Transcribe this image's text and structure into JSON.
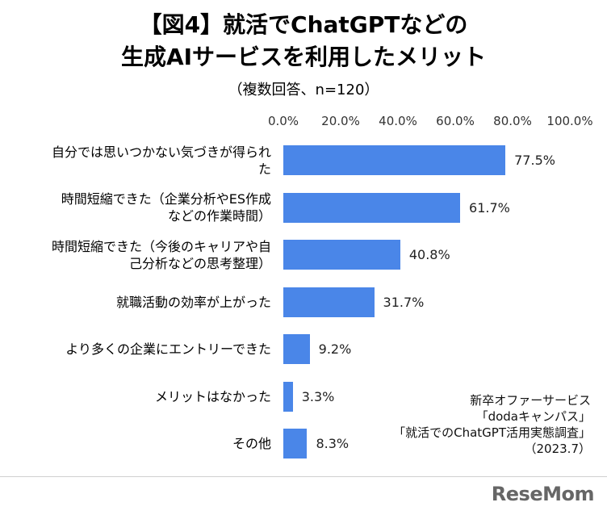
{
  "chart_data": {
    "type": "bar",
    "orientation": "horizontal",
    "title_line1": "【図4】就活でChatGPTなどの",
    "title_line2": "生成AIサービスを利用したメリット",
    "subtitle": "（複数回答、n=120）",
    "xlim": [
      0,
      100
    ],
    "tick_labels": [
      "0.0%",
      "20.0%",
      "40.0%",
      "60.0%",
      "80.0%",
      "100.0%"
    ],
    "categories": [
      [
        "自分では思いつかない気づきが得られ",
        "た"
      ],
      [
        "時間短縮できた（企業分析やES作成",
        "などの作業時間）"
      ],
      [
        "時間短縮できた（今後のキャリアや自",
        "己分析などの思考整理）"
      ],
      [
        "就職活動の効率が上がった"
      ],
      [
        "より多くの企業にエントリーできた"
      ],
      [
        "メリットはなかった"
      ],
      [
        "その他"
      ]
    ],
    "values": [
      77.5,
      61.7,
      40.8,
      31.7,
      9.2,
      3.3,
      8.3
    ],
    "value_labels": [
      "77.5%",
      "61.7%",
      "40.8%",
      "31.7%",
      "9.2%",
      "3.3%",
      "8.3%"
    ],
    "bar_color": "#4a86e8"
  },
  "source": {
    "line1": "新卒オファーサービス",
    "line2": "「dodaキャンパス」",
    "line3": "「就活でのChatGPT活用実態調査」",
    "line4": "（2023.7）"
  },
  "logo": "ReseMom"
}
